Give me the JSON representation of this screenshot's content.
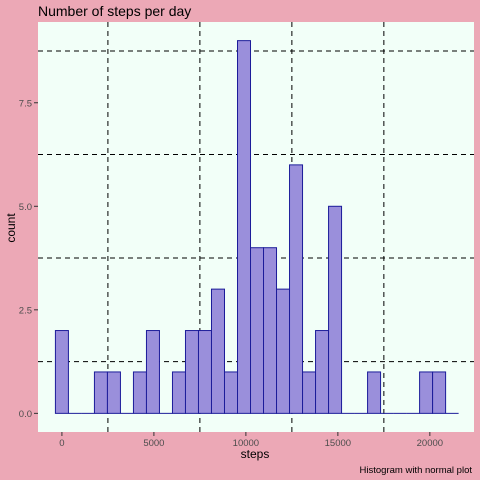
{
  "chart_data": {
    "type": "bar",
    "title": "Number of steps per day",
    "caption": "Histogram with normal plot",
    "xlabel": "steps",
    "ylabel": "count",
    "xlim": [
      -1300,
      22400
    ],
    "ylim": [
      -0.45,
      9.45
    ],
    "x_ticks": [
      0,
      5000,
      10000,
      15000,
      20000
    ],
    "x_tick_labels": [
      "0",
      "5000",
      "10000",
      "15000",
      "20000"
    ],
    "y_ticks": [
      0,
      2.5,
      5,
      7.5
    ],
    "y_tick_labels": [
      "0.0",
      "2.5",
      "5.0",
      "7.5"
    ],
    "bin_width": 707,
    "bin_centers": [
      0,
      707,
      1414,
      2121,
      2828,
      3535,
      4242,
      4949,
      5656,
      6363,
      7070,
      7777,
      8484,
      9191,
      9898,
      10605,
      11312,
      12019,
      12726,
      13433,
      14140,
      14847,
      15554,
      16261,
      16968,
      17675,
      18382,
      19089,
      19796,
      20503,
      21210
    ],
    "values": [
      2,
      0,
      0,
      1,
      1,
      0,
      1,
      2,
      0,
      1,
      2,
      2,
      3,
      1,
      9,
      4,
      4,
      3,
      6,
      1,
      2,
      5,
      0,
      0,
      1,
      0,
      0,
      0,
      1,
      1,
      0
    ],
    "grid_x": [
      2500,
      7500,
      12500,
      17500
    ],
    "grid_y": [
      1.25,
      3.75,
      6.25,
      8.75
    ],
    "colors": {
      "background": "#ECA8B6",
      "panel": "#F2FFF8",
      "bar_fill": "#9A8FDB",
      "bar_stroke": "#1C1C9A",
      "grid": "#000000"
    }
  }
}
